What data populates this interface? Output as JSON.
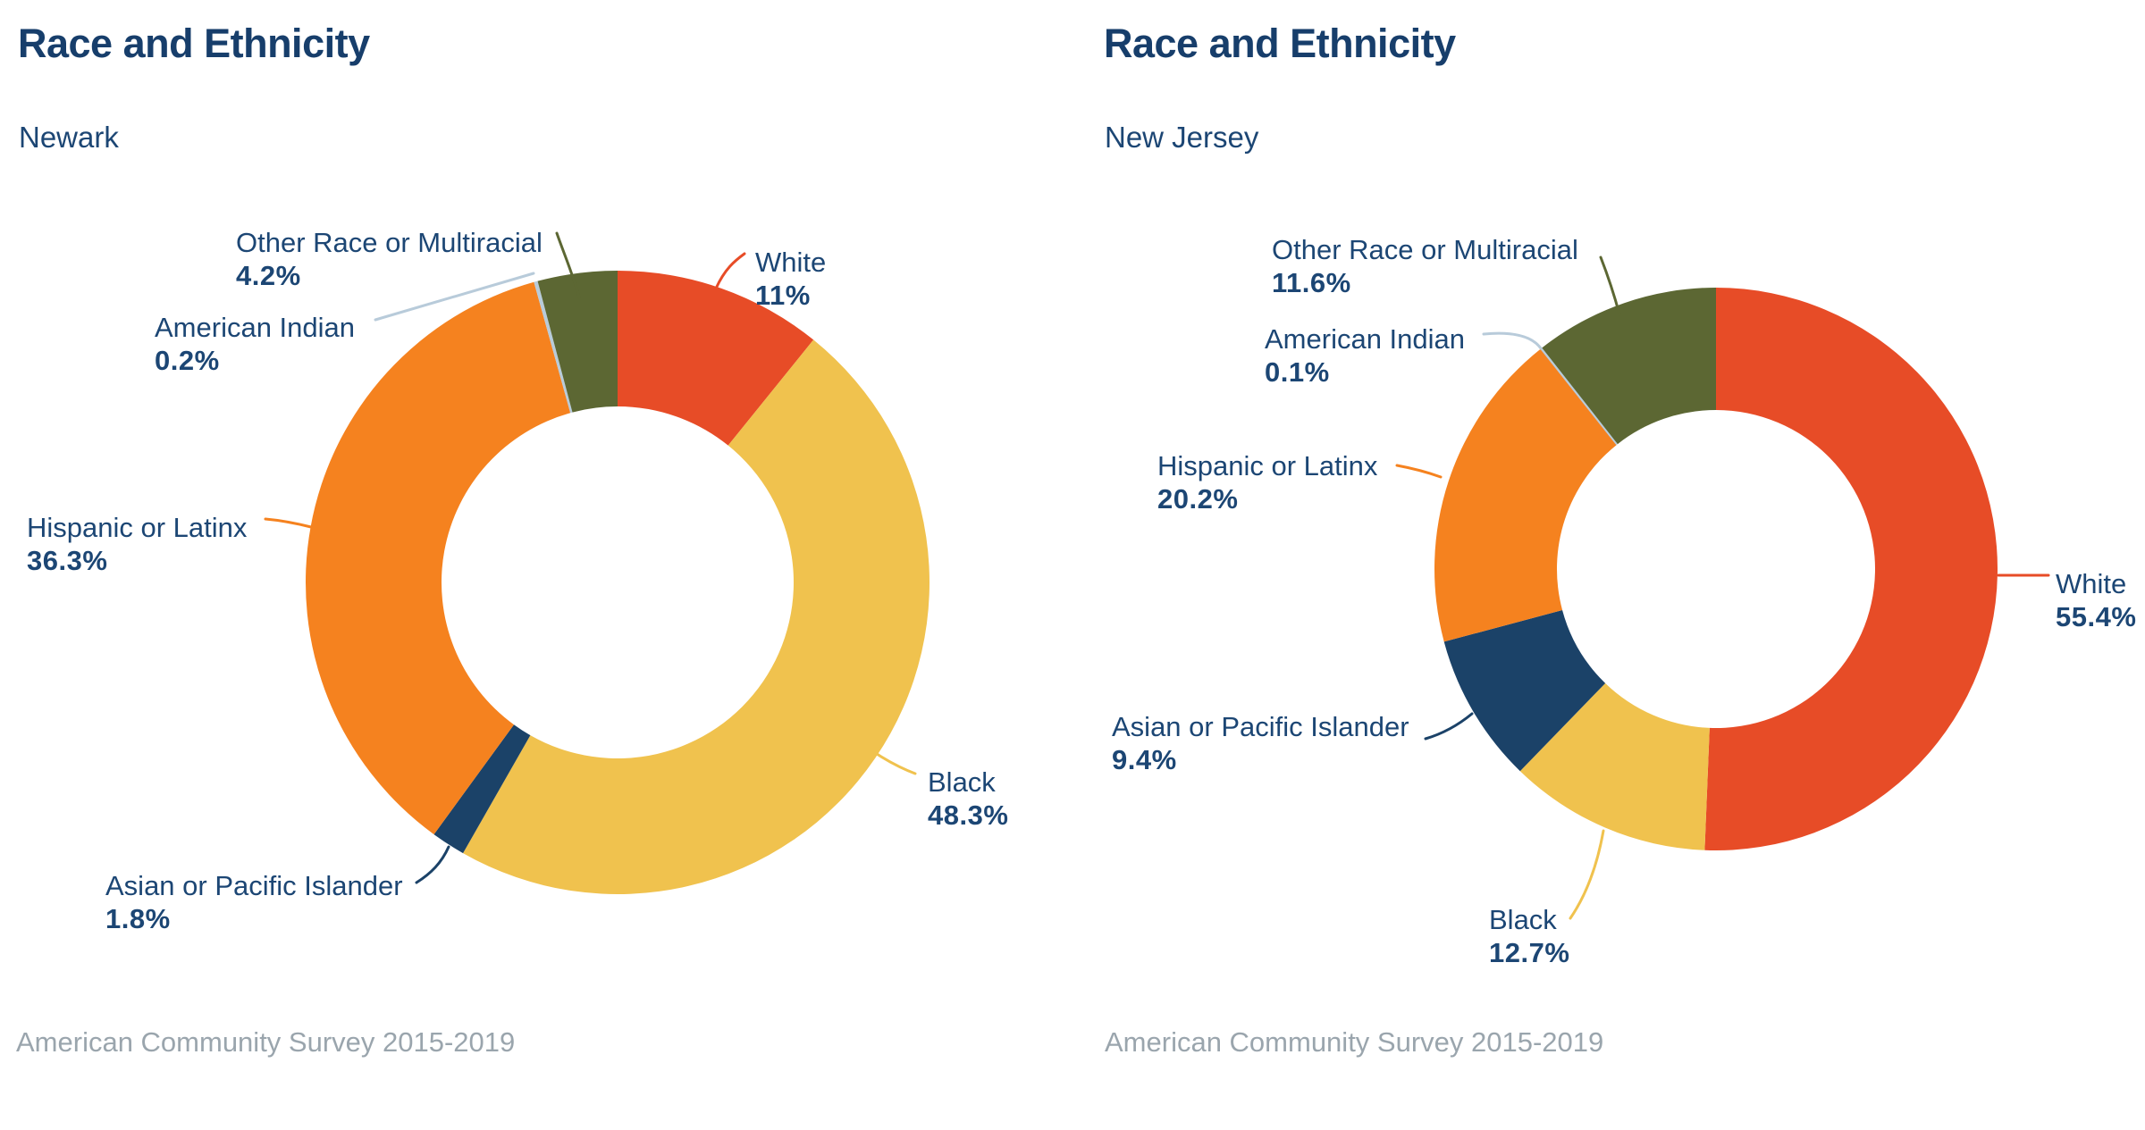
{
  "theme": {
    "background": "#FFFFFF",
    "title_color": "#173E6B",
    "label_color": "#1C4674",
    "source_color": "#9AA5AD"
  },
  "chart_data": [
    {
      "type": "pie",
      "variant": "donut",
      "title": "Race and Ethnicity",
      "subtitle": "Newark",
      "source": "American Community Survey 2015-2019",
      "start_angle_deg": 0,
      "direction": "clockwise",
      "legend_position": "outside-callouts",
      "slices": [
        {
          "label": "White",
          "value": 11,
          "display": "11%",
          "color": "#E74C27"
        },
        {
          "label": "Black",
          "value": 48.3,
          "display": "48.3%",
          "color": "#F0C24E"
        },
        {
          "label": "Asian or Pacific Islander",
          "value": 1.8,
          "display": "1.8%",
          "color": "#1B4268"
        },
        {
          "label": "Hispanic or Latinx",
          "value": 36.3,
          "display": "36.3%",
          "color": "#F5821F"
        },
        {
          "label": "American Indian",
          "value": 0.2,
          "display": "0.2%",
          "color": "#B8CBDA"
        },
        {
          "label": "Other Race or Multiracial",
          "value": 4.2,
          "display": "4.2%",
          "color": "#5C6733"
        }
      ]
    },
    {
      "type": "pie",
      "variant": "donut",
      "title": "Race and Ethnicity",
      "subtitle": "New Jersey",
      "source": "American Community Survey 2015-2019",
      "start_angle_deg": 0,
      "direction": "clockwise",
      "legend_position": "outside-callouts",
      "slices": [
        {
          "label": "White",
          "value": 55.4,
          "display": "55.4%",
          "color": "#E74C27"
        },
        {
          "label": "Black",
          "value": 12.7,
          "display": "12.7%",
          "color": "#F0C24E"
        },
        {
          "label": "Asian or Pacific Islander",
          "value": 9.4,
          "display": "9.4%",
          "color": "#1B4268"
        },
        {
          "label": "Hispanic or Latinx",
          "value": 20.2,
          "display": "20.2%",
          "color": "#F5821F"
        },
        {
          "label": "American Indian",
          "value": 0.1,
          "display": "0.1%",
          "color": "#B8CBDA"
        },
        {
          "label": "Other Race or Multiracial",
          "value": 11.6,
          "display": "11.6%",
          "color": "#5C6733"
        }
      ]
    }
  ]
}
